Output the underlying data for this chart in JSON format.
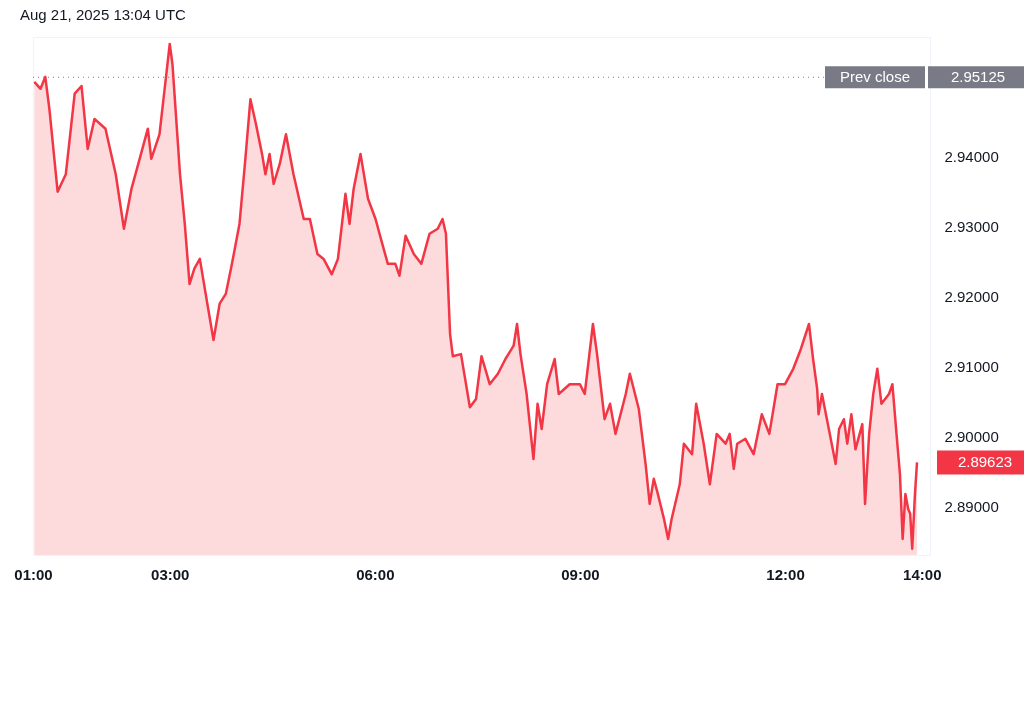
{
  "chart_data": {
    "type": "area",
    "title": "Aug 21, 2025 13:04 UTC",
    "color": "#f23645",
    "grid": false,
    "line_style": "solid",
    "x": [
      1.02,
      1.11,
      1.18,
      1.24,
      1.36,
      1.48,
      1.61,
      1.71,
      1.8,
      1.9,
      2.06,
      2.21,
      2.33,
      2.44,
      2.56,
      2.68,
      2.73,
      2.85,
      2.95,
      3.0,
      3.04,
      3.15,
      3.22,
      3.29,
      3.36,
      3.44,
      3.55,
      3.64,
      3.73,
      3.82,
      3.91,
      4.02,
      4.1,
      4.18,
      4.26,
      4.35,
      4.4,
      4.46,
      4.52,
      4.61,
      4.7,
      4.81,
      4.96,
      5.05,
      5.16,
      5.25,
      5.37,
      5.46,
      5.57,
      5.63,
      5.69,
      5.79,
      5.9,
      6.01,
      6.13,
      6.19,
      6.3,
      6.36,
      6.45,
      6.57,
      6.68,
      6.8,
      6.92,
      6.99,
      7.04,
      7.1,
      7.14,
      7.26,
      7.39,
      7.48,
      7.56,
      7.68,
      7.8,
      7.91,
      8.03,
      8.08,
      8.13,
      8.22,
      8.32,
      8.38,
      8.44,
      8.52,
      8.63,
      8.69,
      8.85,
      9.0,
      9.07,
      9.19,
      9.25,
      9.36,
      9.44,
      9.52,
      9.67,
      9.73,
      9.86,
      9.96,
      10.02,
      10.08,
      10.14,
      10.23,
      10.29,
      10.34,
      10.46,
      10.52,
      10.64,
      10.7,
      10.81,
      10.9,
      11.0,
      11.13,
      11.19,
      11.25,
      11.3,
      11.42,
      11.54,
      11.66,
      11.77,
      11.89,
      12.0,
      12.12,
      12.23,
      12.35,
      12.41,
      12.47,
      12.49,
      12.54,
      12.64,
      12.74,
      12.79,
      12.86,
      12.91,
      12.97,
      13.03,
      13.13,
      13.17,
      13.23,
      13.29,
      13.35,
      13.41,
      13.52,
      13.57,
      13.63,
      13.68,
      13.72,
      13.76,
      13.8,
      13.83,
      13.86,
      13.9,
      13.93
    ],
    "values": [
      2.9506,
      2.9496,
      2.9513,
      2.9467,
      2.9349,
      2.9374,
      2.9489,
      2.95,
      2.941,
      2.9453,
      2.9439,
      2.9374,
      2.9296,
      2.9353,
      2.9396,
      2.9439,
      2.9396,
      2.9431,
      2.9517,
      2.956,
      2.9531,
      2.9374,
      2.9303,
      2.9217,
      2.9239,
      2.9253,
      2.9189,
      2.9137,
      2.9189,
      2.9203,
      2.9246,
      2.9303,
      2.9389,
      2.9481,
      2.9446,
      2.9403,
      2.9374,
      2.9403,
      2.936,
      2.9389,
      2.9431,
      2.9374,
      2.931,
      2.931,
      2.926,
      2.9253,
      2.9231,
      2.9253,
      2.9346,
      2.9303,
      2.9353,
      2.9403,
      2.9339,
      2.931,
      2.9267,
      2.9246,
      2.9246,
      2.9229,
      2.9286,
      2.926,
      2.9246,
      2.9289,
      2.9296,
      2.931,
      2.9289,
      2.9146,
      2.9114,
      2.9117,
      2.9041,
      2.9053,
      2.9114,
      2.9074,
      2.9089,
      2.911,
      2.9129,
      2.916,
      2.9117,
      2.906,
      2.8967,
      2.9046,
      2.901,
      2.9074,
      2.911,
      2.906,
      2.9074,
      2.9074,
      2.906,
      2.916,
      2.9117,
      2.9024,
      2.9046,
      2.9003,
      2.906,
      2.9089,
      2.9039,
      2.896,
      2.8903,
      2.8939,
      2.8917,
      2.8881,
      2.8853,
      2.8881,
      2.8931,
      2.8989,
      2.8974,
      2.9046,
      2.8989,
      2.8931,
      2.9003,
      2.8989,
      2.9003,
      2.8953,
      2.8989,
      2.8996,
      2.8974,
      2.9031,
      2.9003,
      2.9074,
      2.9074,
      2.9096,
      2.9124,
      2.916,
      2.911,
      2.9067,
      2.9031,
      2.906,
      2.901,
      2.896,
      2.901,
      2.9024,
      2.8989,
      2.9031,
      2.8981,
      2.9017,
      2.8903,
      2.9003,
      2.906,
      2.9096,
      2.9046,
      2.906,
      2.9074,
      2.9003,
      2.8946,
      2.8853,
      2.8917,
      2.8896,
      2.8889,
      2.8839,
      2.8917,
      2.89623
    ],
    "xlim": [
      1,
      14.12
    ],
    "xticks": [
      {
        "value": 1,
        "label": "01:00"
      },
      {
        "value": 3,
        "label": "03:00"
      },
      {
        "value": 6,
        "label": "06:00"
      },
      {
        "value": 9,
        "label": "09:00"
      },
      {
        "value": 12,
        "label": "12:00"
      },
      {
        "value": 14,
        "label": "14:00"
      }
    ],
    "ylim": [
      2.883,
      2.957
    ],
    "yticks": [
      {
        "value": 2.89,
        "label": "2.89000"
      },
      {
        "value": 2.9,
        "label": "2.90000"
      },
      {
        "value": 2.91,
        "label": "2.91000"
      },
      {
        "value": 2.92,
        "label": "2.92000"
      },
      {
        "value": 2.93,
        "label": "2.93000"
      },
      {
        "value": 2.94,
        "label": "2.94000"
      }
    ],
    "ref_lines": [
      {
        "axis": "y",
        "value": 2.95125,
        "label": "Prev close",
        "color": "#787b86",
        "line_style": "dotted"
      }
    ],
    "annotations": [
      "2.95125",
      {
        "text": "2.89623",
        "x": 13.93,
        "y": 2.89623
      }
    ]
  }
}
